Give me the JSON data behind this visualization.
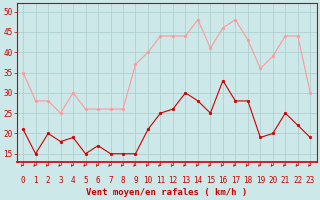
{
  "hours": [
    0,
    1,
    2,
    3,
    4,
    5,
    6,
    7,
    8,
    9,
    10,
    11,
    12,
    13,
    14,
    15,
    16,
    17,
    18,
    19,
    20,
    21,
    22,
    23
  ],
  "wind_avg": [
    21,
    15,
    20,
    18,
    19,
    15,
    17,
    15,
    15,
    15,
    21,
    25,
    26,
    30,
    28,
    25,
    33,
    28,
    28,
    19,
    20,
    25,
    22,
    19
  ],
  "wind_gust": [
    35,
    28,
    28,
    25,
    30,
    26,
    26,
    26,
    26,
    37,
    40,
    44,
    44,
    44,
    48,
    41,
    46,
    48,
    43,
    36,
    39,
    44,
    44,
    30
  ],
  "avg_color": "#cc0000",
  "gust_color": "#ff9999",
  "bg_color": "#cce8e8",
  "grid_color": "#aacccc",
  "xlabel": "Vent moyen/en rafales ( km/h )",
  "ylim": [
    13,
    52
  ],
  "yticks": [
    15,
    20,
    25,
    30,
    35,
    40,
    45,
    50
  ],
  "tick_fontsize": 5.5,
  "label_fontsize": 6.5
}
